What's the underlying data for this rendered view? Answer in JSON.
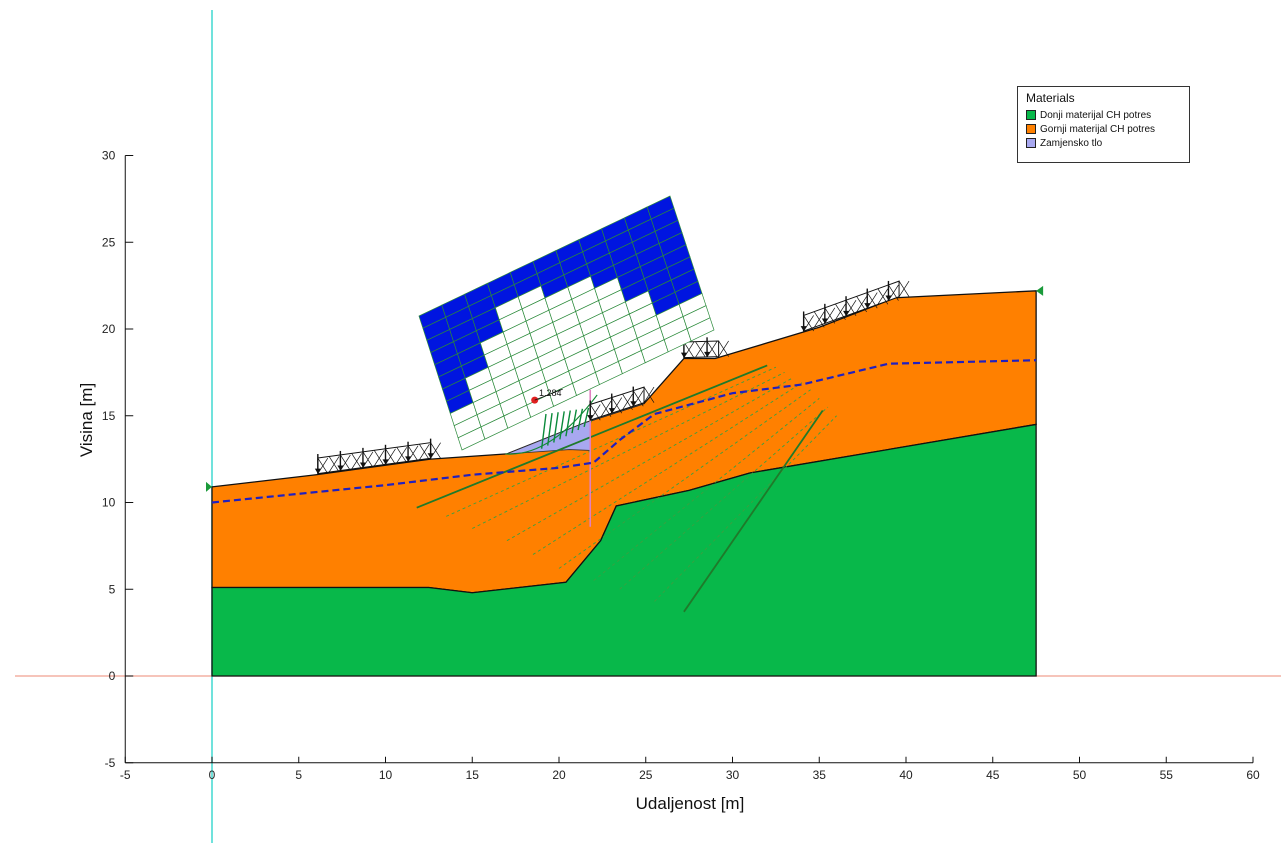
{
  "chart_data": {
    "type": "slope-stability-section",
    "xlabel": "Udaljenost [m]",
    "ylabel": "Visina [m]",
    "xlim": [
      -5,
      60
    ],
    "ylim": [
      -5,
      30
    ],
    "xticks": [
      -5,
      0,
      5,
      10,
      15,
      20,
      25,
      30,
      35,
      40,
      45,
      50,
      55,
      60
    ],
    "yticks": [
      -5,
      0,
      5,
      10,
      15,
      20,
      25,
      30
    ],
    "factor_of_safety": "1.284",
    "materials": [
      {
        "name": "Donji materijal CH potres",
        "color": "#08b84a"
      },
      {
        "name": "Gornji materijal CH potres",
        "color": "#ff8000"
      },
      {
        "name": "Zamjensko tlo",
        "color": "#a8a8f0"
      }
    ],
    "ground_surface": [
      [
        0,
        10.9
      ],
      [
        6,
        11.6
      ],
      [
        12.6,
        12.5
      ],
      [
        17,
        12.8
      ],
      [
        21.5,
        14.6
      ],
      [
        24.9,
        15.7
      ],
      [
        27.2,
        18.3
      ],
      [
        29,
        18.3
      ],
      [
        35,
        20.1
      ],
      [
        39.4,
        21.8
      ],
      [
        47.5,
        22.2
      ]
    ],
    "lower_layer_top": [
      [
        0,
        5.1
      ],
      [
        12.5,
        5.1
      ],
      [
        15,
        4.8
      ],
      [
        20.4,
        5.4
      ],
      [
        22.4,
        7.8
      ],
      [
        23.3,
        9.8
      ],
      [
        27.5,
        10.7
      ],
      [
        31,
        11.7
      ],
      [
        47.5,
        14.5
      ]
    ],
    "water_table": [
      [
        0,
        10
      ],
      [
        5,
        10.5
      ],
      [
        10,
        11
      ],
      [
        15,
        11.6
      ],
      [
        20,
        12
      ],
      [
        22,
        12.3
      ],
      [
        23.5,
        13.6
      ],
      [
        25.5,
        15.1
      ],
      [
        30,
        16.3
      ],
      [
        34,
        16.8
      ],
      [
        39,
        18
      ],
      [
        47.5,
        18.2
      ]
    ],
    "surcharge_loads": [
      {
        "x1": 6.1,
        "x2": 12.6
      },
      {
        "x1": 21.8,
        "x2": 24.9
      },
      {
        "x1": 27.2,
        "x2": 29.2
      },
      {
        "x1": 34.1,
        "x2": 39.6
      }
    ],
    "reinforcements": [
      {
        "x1": 11.8,
        "y1": 9.7,
        "x2": 32,
        "y2": 17.9
      },
      {
        "x1": 27.2,
        "y1": 3.7,
        "x2": 35.2,
        "y2": 15.3
      }
    ],
    "vertical_marker_x": 21.8,
    "slip_center": [
      18.6,
      15.9
    ],
    "series": [
      {
        "name": "Donji materijal CH potres",
        "values": []
      },
      {
        "name": "Gornji materijal CH potres",
        "values": []
      },
      {
        "name": "Zamjensko tlo",
        "values": []
      }
    ]
  },
  "legend": {
    "title": "Materials",
    "items": [
      {
        "label": "Donji materijal CH potres",
        "color": "#08b84a"
      },
      {
        "label": "Gornji materijal CH potres",
        "color": "#ff8000"
      },
      {
        "label": "Zamjensko tlo",
        "color": "#a8a8f0"
      }
    ]
  }
}
